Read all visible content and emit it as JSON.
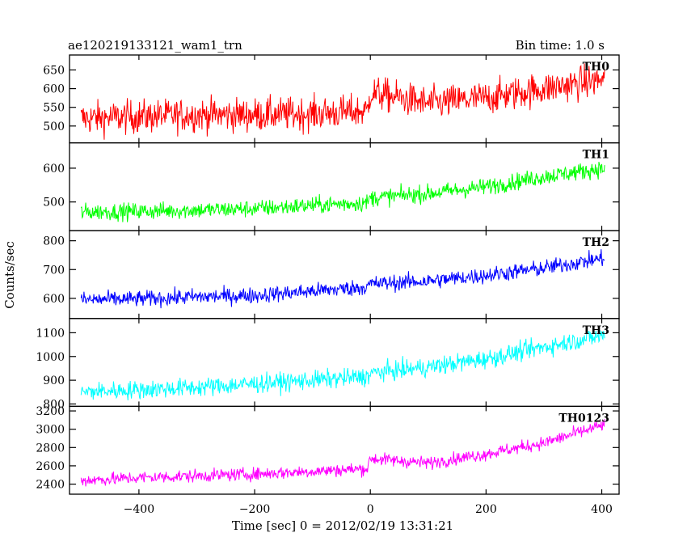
{
  "header": {
    "title": "ae120219133121_wam1_trn",
    "bin_time": "Bin time: 1.0 s"
  },
  "chart_data": {
    "type": "line",
    "title": "ae120219133121_wam1_trn",
    "subtitle": "Bin time: 1.0 s",
    "xlabel": "Time [sec] 0 = 2012/02/19 13:31:21",
    "ylabel": "Counts/sec",
    "xlim": [
      -520,
      430
    ],
    "x_ticks": [
      -400,
      -200,
      0,
      200,
      400
    ],
    "x_tick_labels": [
      "−400",
      "−200",
      "0",
      "200",
      "400"
    ],
    "bin_seconds": 1.0,
    "x_range_data": [
      -500,
      405
    ],
    "grid": false,
    "series": [
      {
        "name": "TH0",
        "color": "#ff0000",
        "ylim": [
          455,
          690
        ],
        "y_ticks": [
          500,
          550,
          600,
          650
        ],
        "x": [
          -500,
          -400,
          -300,
          -200,
          -100,
          -5,
          0,
          100,
          200,
          300,
          405
        ],
        "values": [
          520,
          525,
          530,
          530,
          533,
          540,
          590,
          560,
          575,
          600,
          625
        ],
        "noise": 32
      },
      {
        "name": "TH1",
        "color": "#00ff00",
        "ylim": [
          415,
          675
        ],
        "y_ticks": [
          500,
          600
        ],
        "x": [
          -500,
          -400,
          -300,
          -200,
          -100,
          -5,
          0,
          100,
          200,
          300,
          405
        ],
        "values": [
          470,
          472,
          476,
          480,
          490,
          498,
          512,
          525,
          545,
          575,
          600
        ],
        "noise": 18
      },
      {
        "name": "TH2",
        "color": "#0000ff",
        "ylim": [
          530,
          835
        ],
        "y_ticks": [
          600,
          700,
          800
        ],
        "x": [
          -500,
          -400,
          -300,
          -200,
          -100,
          -5,
          0,
          100,
          200,
          300,
          405
        ],
        "values": [
          595,
          598,
          605,
          610,
          625,
          640,
          650,
          660,
          680,
          705,
          740
        ],
        "noise": 20
      },
      {
        "name": "TH3",
        "color": "#00ffff",
        "ylim": [
          790,
          1160
        ],
        "y_ticks": [
          800,
          900,
          1000,
          1100
        ],
        "x": [
          -500,
          -400,
          -300,
          -200,
          -100,
          -5,
          0,
          100,
          200,
          300,
          405
        ],
        "values": [
          850,
          860,
          870,
          885,
          900,
          915,
          930,
          955,
          990,
          1040,
          1090
        ],
        "noise": 28
      },
      {
        "name": "TH0123",
        "color": "#ff00ff",
        "ylim": [
          2290,
          3250
        ],
        "y_ticks": [
          2400,
          2600,
          2800,
          3000,
          3200
        ],
        "x": [
          -500,
          -400,
          -300,
          -200,
          -100,
          -5,
          0,
          100,
          200,
          300,
          405
        ],
        "values": [
          2440,
          2470,
          2490,
          2510,
          2540,
          2570,
          2680,
          2630,
          2730,
          2850,
          3050
        ],
        "noise": 50
      }
    ]
  }
}
